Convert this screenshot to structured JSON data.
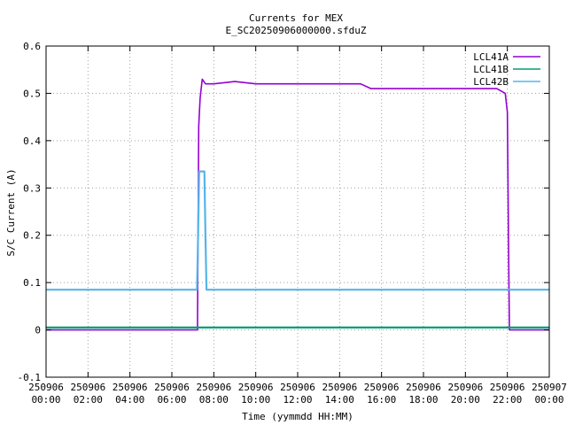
{
  "chart_data": {
    "type": "line",
    "title": "Currents for MEX",
    "subtitle": "E_SC20250906000000.sfduZ",
    "xlabel": "Time (yymmdd HH:MM)",
    "ylabel": "S/C Current (A)",
    "xlim": [
      0,
      24
    ],
    "ylim": [
      -0.1,
      0.6
    ],
    "y_ticks": [
      -0.1,
      0,
      0.1,
      0.2,
      0.3,
      0.4,
      0.5,
      0.6
    ],
    "y_tick_labels": [
      "-0.1",
      "0",
      "0.1",
      "0.2",
      "0.3",
      "0.4",
      "0.5",
      "0.6"
    ],
    "x_ticks": [
      0,
      2,
      4,
      6,
      8,
      10,
      12,
      14,
      16,
      18,
      20,
      22,
      24
    ],
    "x_tick_labels": [
      [
        "250906",
        "00:00"
      ],
      [
        "250906",
        "02:00"
      ],
      [
        "250906",
        "04:00"
      ],
      [
        "250906",
        "06:00"
      ],
      [
        "250906",
        "08:00"
      ],
      [
        "250906",
        "10:00"
      ],
      [
        "250906",
        "12:00"
      ],
      [
        "250906",
        "14:00"
      ],
      [
        "250906",
        "16:00"
      ],
      [
        "250906",
        "18:00"
      ],
      [
        "250906",
        "20:00"
      ],
      [
        "250906",
        "22:00"
      ],
      [
        "250907",
        "00:00"
      ]
    ],
    "grid": true,
    "legend_position": "top-right",
    "series": [
      {
        "name": "LCL41A",
        "color": "#9400d3",
        "x": [
          0,
          0.5,
          1.0,
          2.0,
          3.0,
          4.0,
          5.0,
          6.0,
          7.0,
          7.22,
          7.28,
          7.35,
          7.45,
          7.6,
          8.0,
          9.0,
          10.0,
          11.0,
          12.0,
          13.0,
          14.0,
          15.0,
          15.5,
          16.0,
          17.0,
          18.0,
          19.0,
          20.0,
          21.0,
          21.5,
          21.9,
          22.0,
          22.05,
          22.1,
          23.0,
          24.0
        ],
        "values": [
          0,
          0,
          0,
          0,
          0,
          0,
          0,
          0,
          0,
          0,
          0.43,
          0.49,
          0.53,
          0.52,
          0.52,
          0.525,
          0.52,
          0.52,
          0.52,
          0.52,
          0.52,
          0.52,
          0.51,
          0.51,
          0.51,
          0.51,
          0.51,
          0.51,
          0.51,
          0.51,
          0.5,
          0.46,
          0.2,
          0,
          0,
          0
        ]
      },
      {
        "name": "LCL41B",
        "color": "#009e73",
        "x": [
          0,
          24
        ],
        "values": [
          0.005,
          0.005
        ]
      },
      {
        "name": "LCL42B",
        "color": "#56b4e9",
        "x": [
          0,
          7.2,
          7.25,
          7.3,
          7.55,
          7.6,
          7.65,
          24
        ],
        "values": [
          0.085,
          0.085,
          0.2,
          0.335,
          0.335,
          0.2,
          0.085,
          0.085
        ]
      }
    ]
  }
}
